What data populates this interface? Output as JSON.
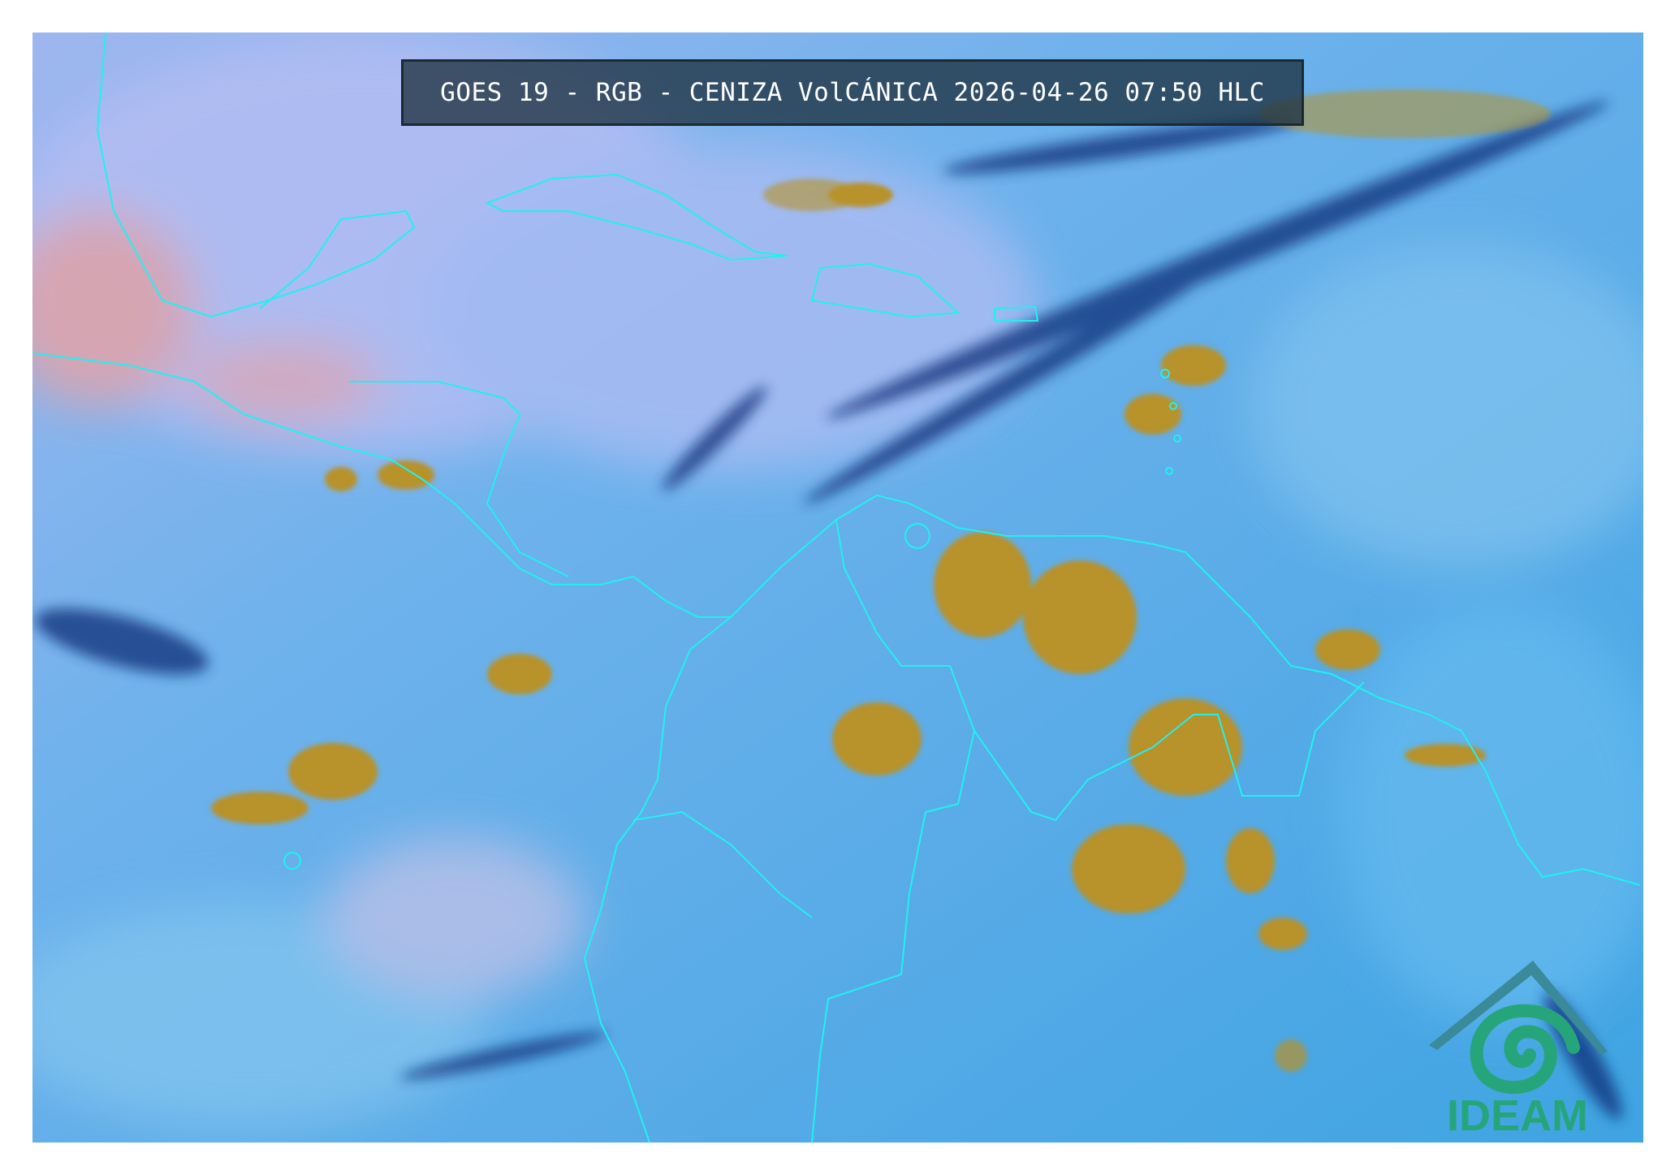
{
  "title": "GOES 19 - RGB - CENIZA VolCÁNICA 2026-04-26 07:50 HLC",
  "logo": {
    "text": "IDEAM",
    "color": "#27a57a",
    "roof_color": "#3f7fa6"
  },
  "colors": {
    "ocean_clear": "#47a9e6",
    "high_cloud": "#a8b8f2",
    "dust_pink": "#e3a3a8",
    "deep_convection": "#b8922a",
    "thin_ice": "#0d2f78",
    "coastline": "#22f0f0"
  }
}
